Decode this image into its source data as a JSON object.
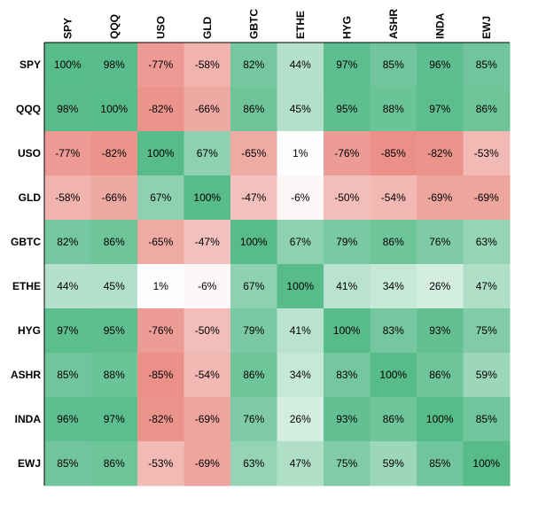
{
  "chart_data": {
    "type": "heatmap",
    "title": "",
    "xlabel": "",
    "ylabel": "",
    "columns": [
      "SPY",
      "QQQ",
      "USO",
      "GLD",
      "GBTC",
      "ETHE",
      "HYG",
      "ASHR",
      "INDA",
      "EWJ"
    ],
    "rows": [
      "SPY",
      "QQQ",
      "USO",
      "GLD",
      "GBTC",
      "ETHE",
      "HYG",
      "ASHR",
      "INDA",
      "EWJ"
    ],
    "values": [
      [
        100,
        98,
        -77,
        -58,
        82,
        44,
        97,
        85,
        96,
        85
      ],
      [
        98,
        100,
        -82,
        -66,
        86,
        45,
        95,
        88,
        97,
        86
      ],
      [
        -77,
        -82,
        100,
        67,
        -65,
        1,
        -76,
        -85,
        -82,
        -53
      ],
      [
        -58,
        -66,
        67,
        100,
        -47,
        -6,
        -50,
        -54,
        -69,
        -69
      ],
      [
        82,
        86,
        -65,
        -47,
        100,
        67,
        79,
        86,
        76,
        63
      ],
      [
        44,
        45,
        1,
        -6,
        67,
        100,
        41,
        34,
        26,
        47
      ],
      [
        97,
        95,
        -76,
        -50,
        79,
        41,
        100,
        83,
        93,
        75
      ],
      [
        85,
        88,
        -85,
        -54,
        86,
        34,
        83,
        100,
        86,
        59
      ],
      [
        96,
        97,
        -82,
        -69,
        76,
        26,
        93,
        86,
        100,
        85
      ],
      [
        85,
        86,
        -53,
        -69,
        63,
        47,
        75,
        59,
        85,
        100
      ]
    ],
    "value_suffix": "%",
    "color_scale": {
      "min": -100,
      "mid": 0,
      "max": 100,
      "neg": "#e67c73",
      "zero": "#ffffff",
      "pos": "#57bb8a"
    },
    "grid": false,
    "legend": "none"
  }
}
